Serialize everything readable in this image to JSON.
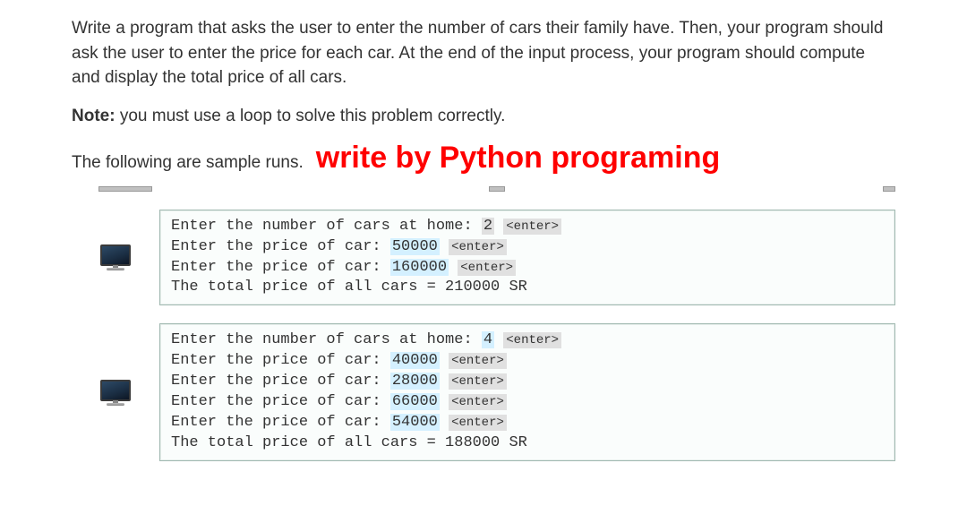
{
  "problem": {
    "description": "Write a program that asks the user to enter the number of cars their family have. Then, your program should ask the user to enter the price for each car. At the end of the input process, your program should compute and display the total price of all cars.",
    "note_label": "Note:",
    "note_text": " you must use a loop to solve this problem correctly.",
    "runs_label": "The following are sample runs.",
    "red_heading": "write by Python programing"
  },
  "prompts": {
    "num_cars": "Enter the number of cars at home: ",
    "price": "Enter the price of car: ",
    "total": "The total price of all cars = ",
    "enter_tag": "<enter>",
    "currency_suffix": " SR"
  },
  "samples": [
    {
      "num_cars": "2",
      "prices": [
        "50000",
        "160000"
      ],
      "total": "210000"
    },
    {
      "num_cars": "4",
      "prices": [
        "40000",
        "28000",
        "66000",
        "54000"
      ],
      "total": "188000"
    }
  ],
  "colors": {
    "red": "#ff0000",
    "text": "#333333",
    "terminal_bg": "#fafdfc",
    "terminal_border": "#a0b8b0",
    "highlight_blue": "#d4f0ff",
    "highlight_gray": "#e0e0e0",
    "background": "#ffffff"
  }
}
